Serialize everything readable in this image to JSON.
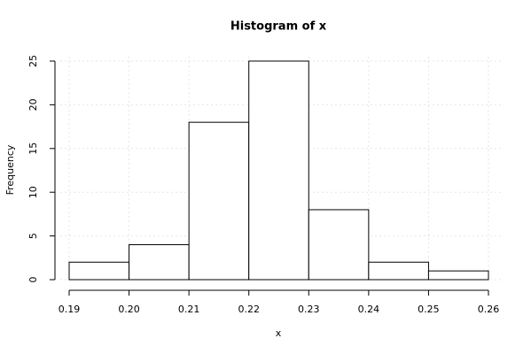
{
  "chart_data": {
    "type": "histogram",
    "title": "Histogram of x",
    "x_label": "x",
    "y_label": "Frequency",
    "bins": [
      0.19,
      0.2,
      0.21,
      0.22,
      0.23,
      0.24,
      0.25,
      0.26
    ],
    "values": [
      2,
      4,
      18,
      25,
      8,
      2,
      1
    ],
    "color": "#ffffff",
    "xlim": [
      0.19,
      0.26
    ],
    "xticks": [
      0.19,
      {
        "value": 0.2,
        "label": "0.20"
      },
      0.21,
      0.22,
      0.23,
      0.24,
      0.25,
      0.26
    ],
    "ylim": [
      0,
      25
    ],
    "yticks": [
      0,
      5,
      10,
      15,
      20,
      25
    ],
    "grid": true
  }
}
